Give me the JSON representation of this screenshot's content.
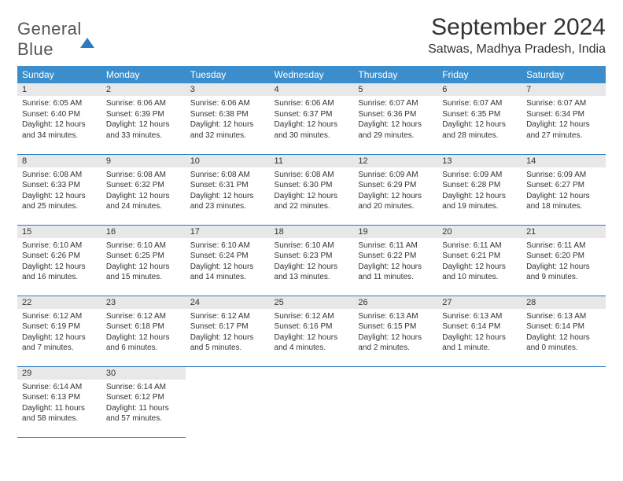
{
  "logo": {
    "line1": "General",
    "line2": "Blue"
  },
  "header": {
    "month_title": "September 2024",
    "location": "Satwas, Madhya Pradesh, India"
  },
  "colors": {
    "header_bg": "#3b8ecb",
    "header_text": "#ffffff",
    "daynum_bg": "#e8e8e8",
    "row_border": "#2b7bbf",
    "logo_blue": "#2b7bbf",
    "body_text": "#333333",
    "page_bg": "#ffffff"
  },
  "calendar": {
    "weekdays": [
      "Sunday",
      "Monday",
      "Tuesday",
      "Wednesday",
      "Thursday",
      "Friday",
      "Saturday"
    ],
    "weeks": [
      [
        {
          "n": "1",
          "sunrise": "Sunrise: 6:05 AM",
          "sunset": "Sunset: 6:40 PM",
          "day1": "Daylight: 12 hours",
          "day2": "and 34 minutes."
        },
        {
          "n": "2",
          "sunrise": "Sunrise: 6:06 AM",
          "sunset": "Sunset: 6:39 PM",
          "day1": "Daylight: 12 hours",
          "day2": "and 33 minutes."
        },
        {
          "n": "3",
          "sunrise": "Sunrise: 6:06 AM",
          "sunset": "Sunset: 6:38 PM",
          "day1": "Daylight: 12 hours",
          "day2": "and 32 minutes."
        },
        {
          "n": "4",
          "sunrise": "Sunrise: 6:06 AM",
          "sunset": "Sunset: 6:37 PM",
          "day1": "Daylight: 12 hours",
          "day2": "and 30 minutes."
        },
        {
          "n": "5",
          "sunrise": "Sunrise: 6:07 AM",
          "sunset": "Sunset: 6:36 PM",
          "day1": "Daylight: 12 hours",
          "day2": "and 29 minutes."
        },
        {
          "n": "6",
          "sunrise": "Sunrise: 6:07 AM",
          "sunset": "Sunset: 6:35 PM",
          "day1": "Daylight: 12 hours",
          "day2": "and 28 minutes."
        },
        {
          "n": "7",
          "sunrise": "Sunrise: 6:07 AM",
          "sunset": "Sunset: 6:34 PM",
          "day1": "Daylight: 12 hours",
          "day2": "and 27 minutes."
        }
      ],
      [
        {
          "n": "8",
          "sunrise": "Sunrise: 6:08 AM",
          "sunset": "Sunset: 6:33 PM",
          "day1": "Daylight: 12 hours",
          "day2": "and 25 minutes."
        },
        {
          "n": "9",
          "sunrise": "Sunrise: 6:08 AM",
          "sunset": "Sunset: 6:32 PM",
          "day1": "Daylight: 12 hours",
          "day2": "and 24 minutes."
        },
        {
          "n": "10",
          "sunrise": "Sunrise: 6:08 AM",
          "sunset": "Sunset: 6:31 PM",
          "day1": "Daylight: 12 hours",
          "day2": "and 23 minutes."
        },
        {
          "n": "11",
          "sunrise": "Sunrise: 6:08 AM",
          "sunset": "Sunset: 6:30 PM",
          "day1": "Daylight: 12 hours",
          "day2": "and 22 minutes."
        },
        {
          "n": "12",
          "sunrise": "Sunrise: 6:09 AM",
          "sunset": "Sunset: 6:29 PM",
          "day1": "Daylight: 12 hours",
          "day2": "and 20 minutes."
        },
        {
          "n": "13",
          "sunrise": "Sunrise: 6:09 AM",
          "sunset": "Sunset: 6:28 PM",
          "day1": "Daylight: 12 hours",
          "day2": "and 19 minutes."
        },
        {
          "n": "14",
          "sunrise": "Sunrise: 6:09 AM",
          "sunset": "Sunset: 6:27 PM",
          "day1": "Daylight: 12 hours",
          "day2": "and 18 minutes."
        }
      ],
      [
        {
          "n": "15",
          "sunrise": "Sunrise: 6:10 AM",
          "sunset": "Sunset: 6:26 PM",
          "day1": "Daylight: 12 hours",
          "day2": "and 16 minutes."
        },
        {
          "n": "16",
          "sunrise": "Sunrise: 6:10 AM",
          "sunset": "Sunset: 6:25 PM",
          "day1": "Daylight: 12 hours",
          "day2": "and 15 minutes."
        },
        {
          "n": "17",
          "sunrise": "Sunrise: 6:10 AM",
          "sunset": "Sunset: 6:24 PM",
          "day1": "Daylight: 12 hours",
          "day2": "and 14 minutes."
        },
        {
          "n": "18",
          "sunrise": "Sunrise: 6:10 AM",
          "sunset": "Sunset: 6:23 PM",
          "day1": "Daylight: 12 hours",
          "day2": "and 13 minutes."
        },
        {
          "n": "19",
          "sunrise": "Sunrise: 6:11 AM",
          "sunset": "Sunset: 6:22 PM",
          "day1": "Daylight: 12 hours",
          "day2": "and 11 minutes."
        },
        {
          "n": "20",
          "sunrise": "Sunrise: 6:11 AM",
          "sunset": "Sunset: 6:21 PM",
          "day1": "Daylight: 12 hours",
          "day2": "and 10 minutes."
        },
        {
          "n": "21",
          "sunrise": "Sunrise: 6:11 AM",
          "sunset": "Sunset: 6:20 PM",
          "day1": "Daylight: 12 hours",
          "day2": "and 9 minutes."
        }
      ],
      [
        {
          "n": "22",
          "sunrise": "Sunrise: 6:12 AM",
          "sunset": "Sunset: 6:19 PM",
          "day1": "Daylight: 12 hours",
          "day2": "and 7 minutes."
        },
        {
          "n": "23",
          "sunrise": "Sunrise: 6:12 AM",
          "sunset": "Sunset: 6:18 PM",
          "day1": "Daylight: 12 hours",
          "day2": "and 6 minutes."
        },
        {
          "n": "24",
          "sunrise": "Sunrise: 6:12 AM",
          "sunset": "Sunset: 6:17 PM",
          "day1": "Daylight: 12 hours",
          "day2": "and 5 minutes."
        },
        {
          "n": "25",
          "sunrise": "Sunrise: 6:12 AM",
          "sunset": "Sunset: 6:16 PM",
          "day1": "Daylight: 12 hours",
          "day2": "and 4 minutes."
        },
        {
          "n": "26",
          "sunrise": "Sunrise: 6:13 AM",
          "sunset": "Sunset: 6:15 PM",
          "day1": "Daylight: 12 hours",
          "day2": "and 2 minutes."
        },
        {
          "n": "27",
          "sunrise": "Sunrise: 6:13 AM",
          "sunset": "Sunset: 6:14 PM",
          "day1": "Daylight: 12 hours",
          "day2": "and 1 minute."
        },
        {
          "n": "28",
          "sunrise": "Sunrise: 6:13 AM",
          "sunset": "Sunset: 6:14 PM",
          "day1": "Daylight: 12 hours",
          "day2": "and 0 minutes."
        }
      ],
      [
        {
          "n": "29",
          "sunrise": "Sunrise: 6:14 AM",
          "sunset": "Sunset: 6:13 PM",
          "day1": "Daylight: 11 hours",
          "day2": "and 58 minutes."
        },
        {
          "n": "30",
          "sunrise": "Sunrise: 6:14 AM",
          "sunset": "Sunset: 6:12 PM",
          "day1": "Daylight: 11 hours",
          "day2": "and 57 minutes."
        },
        null,
        null,
        null,
        null,
        null
      ]
    ]
  }
}
